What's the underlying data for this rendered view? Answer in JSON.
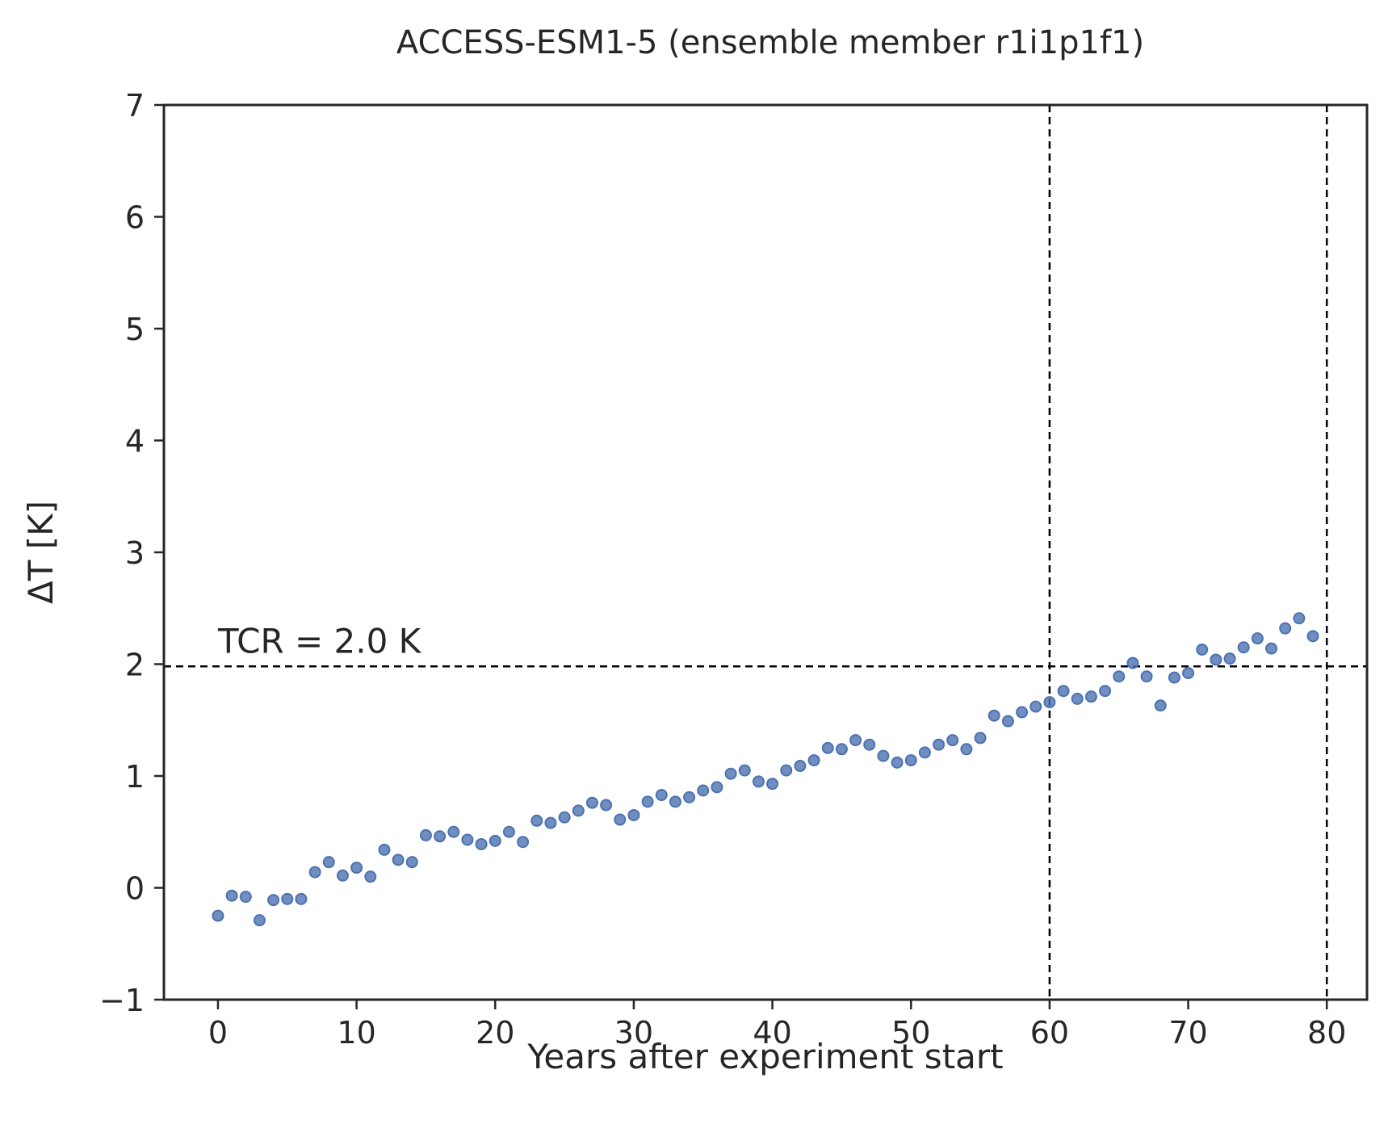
{
  "chart_data": {
    "type": "scatter",
    "title": "ACCESS-ESM1-5 (ensemble member r1i1p1f1)",
    "xlabel": "Years after experiment start",
    "ylabel": "ΔT [K]",
    "xlim": [
      -3.9,
      82.9
    ],
    "ylim": [
      -1,
      7
    ],
    "xticks": [
      0,
      10,
      20,
      30,
      40,
      50,
      60,
      70,
      80
    ],
    "yticks": [
      -1,
      0,
      1,
      2,
      3,
      4,
      5,
      6,
      7
    ],
    "ytick_labels": [
      "−1",
      "0",
      "1",
      "2",
      "3",
      "4",
      "5",
      "6",
      "7"
    ],
    "grid": false,
    "marker_color": "#4c72b0",
    "annotation": {
      "text": "TCR = 2.0 K",
      "x": 0,
      "y": 2.0
    },
    "reference_lines": [
      {
        "orientation": "horizontal",
        "value": 1.98,
        "style": "dashed",
        "color": "#000000"
      },
      {
        "orientation": "vertical",
        "value": 60,
        "style": "dashed",
        "color": "#000000"
      },
      {
        "orientation": "vertical",
        "value": 80,
        "style": "dashed",
        "color": "#000000"
      }
    ],
    "x": [
      0,
      1,
      2,
      3,
      4,
      5,
      6,
      7,
      8,
      9,
      10,
      11,
      12,
      13,
      14,
      15,
      16,
      17,
      18,
      19,
      20,
      21,
      22,
      23,
      24,
      25,
      26,
      27,
      28,
      29,
      30,
      31,
      32,
      33,
      34,
      35,
      36,
      37,
      38,
      39,
      40,
      41,
      42,
      43,
      44,
      45,
      46,
      47,
      48,
      49,
      50,
      51,
      52,
      53,
      54,
      55,
      56,
      57,
      58,
      59,
      60,
      61,
      62,
      63,
      64,
      65,
      66,
      67,
      68,
      69,
      70,
      71,
      72,
      73,
      74,
      75,
      76,
      77,
      78,
      79
    ],
    "y": [
      -0.25,
      -0.07,
      -0.08,
      -0.29,
      -0.11,
      -0.1,
      -0.1,
      0.14,
      0.23,
      0.11,
      0.18,
      0.1,
      0.34,
      0.25,
      0.23,
      0.47,
      0.46,
      0.5,
      0.43,
      0.39,
      0.42,
      0.5,
      0.41,
      0.6,
      0.58,
      0.63,
      0.69,
      0.76,
      0.74,
      0.61,
      0.65,
      0.77,
      0.83,
      0.77,
      0.81,
      0.87,
      0.9,
      1.02,
      1.05,
      0.95,
      0.93,
      1.05,
      1.09,
      1.14,
      1.25,
      1.24,
      1.32,
      1.28,
      1.18,
      1.12,
      1.14,
      1.21,
      1.28,
      1.32,
      1.24,
      1.34,
      1.54,
      1.49,
      1.57,
      1.62,
      1.66,
      1.76,
      1.69,
      1.71,
      1.76,
      1.89,
      2.01,
      1.89,
      1.63,
      1.88,
      1.92,
      2.13,
      2.04,
      2.05,
      2.15,
      2.23,
      2.14,
      2.32,
      2.41,
      2.25
    ]
  }
}
